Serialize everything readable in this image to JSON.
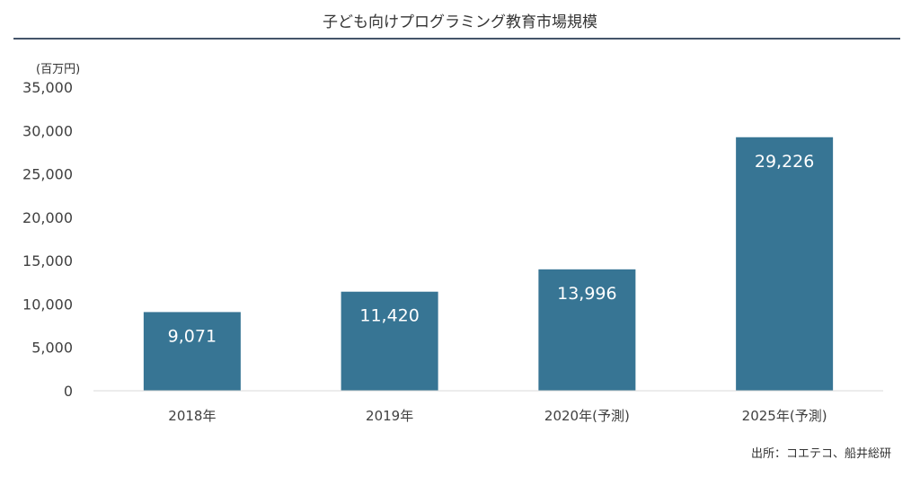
{
  "title": "子ども向けプログラミング教育市場規模",
  "unit_label": "(百万円)",
  "source": "出所：コエテコ、船井総研",
  "colors": {
    "bar": "#377594",
    "axis": "#d9d9d9",
    "title_rule": "#44546a"
  },
  "chart_data": {
    "type": "bar",
    "title": "子ども向けプログラミング教育市場規模",
    "ylabel": "(百万円)",
    "xlabel": "",
    "categories": [
      "2018年",
      "2019年",
      "2020年(予測)",
      "2025年(予測)"
    ],
    "values": [
      9071,
      11420,
      13996,
      29226
    ],
    "value_labels": [
      "9,071",
      "11,420",
      "13,996",
      "29,226"
    ],
    "ylim": [
      0,
      35000
    ],
    "yticks": [
      0,
      5000,
      10000,
      15000,
      20000,
      25000,
      30000,
      35000
    ],
    "ytick_labels": [
      "0",
      "5,000",
      "10,000",
      "15,000",
      "20,000",
      "25,000",
      "30,000",
      "35,000"
    ],
    "grid": false,
    "legend": "none"
  }
}
